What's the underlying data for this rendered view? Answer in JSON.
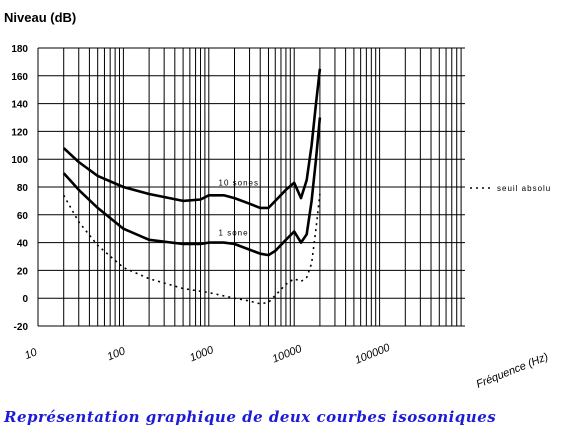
{
  "chart_data": {
    "type": "line",
    "title": "Niveau (dB)",
    "xlabel": "Fréquence (Hz)",
    "ylabel": "Niveau (dB)",
    "x_scale": "log",
    "xlim": [
      10,
      1000000
    ],
    "ylim": [
      -20,
      180
    ],
    "x_ticks": [
      10,
      100,
      1000,
      10000,
      100000
    ],
    "x_tick_labels": [
      "10",
      "100",
      "1000",
      "10000",
      "100000"
    ],
    "y_ticks": [
      -20,
      0,
      20,
      40,
      60,
      80,
      100,
      120,
      140,
      160,
      180
    ],
    "y_tick_labels": [
      "-20",
      "0",
      "20",
      "40",
      "60",
      "80",
      "100",
      "120",
      "140",
      "160",
      "180"
    ],
    "grid": true,
    "legend_placement": "right",
    "series": [
      {
        "name": "10 sones",
        "style": "solid",
        "x": [
          20,
          30,
          50,
          100,
          200,
          500,
          800,
          1000,
          1500,
          2000,
          3000,
          4000,
          5000,
          6000,
          8000,
          10000,
          12000,
          14000,
          16000,
          18000,
          20000
        ],
        "y": [
          108,
          98,
          88,
          80,
          75,
          70,
          71,
          74,
          74,
          72,
          68,
          65,
          65,
          70,
          78,
          83,
          72,
          85,
          110,
          140,
          165
        ]
      },
      {
        "name": "1 sone",
        "style": "solid",
        "x": [
          20,
          30,
          50,
          100,
          200,
          500,
          800,
          1000,
          1500,
          2000,
          3000,
          4000,
          5000,
          6000,
          8000,
          10000,
          12000,
          14000,
          16000,
          18000,
          20000
        ],
        "y": [
          90,
          78,
          65,
          50,
          42,
          39,
          39,
          40,
          40,
          39,
          35,
          32,
          31,
          34,
          42,
          48,
          40,
          46,
          70,
          100,
          130
        ]
      },
      {
        "name": "seuil absolu",
        "style": "dotted",
        "x": [
          20,
          30,
          50,
          100,
          200,
          500,
          1000,
          2000,
          3000,
          4000,
          5000,
          6000,
          8000,
          10000,
          12000,
          14000,
          16000,
          18000,
          20000
        ],
        "y": [
          74,
          55,
          38,
          22,
          14,
          7,
          4,
          0,
          -2,
          -4,
          -3,
          2,
          10,
          14,
          12,
          15,
          25,
          50,
          75
        ]
      }
    ],
    "annotations": [
      {
        "text": "10 sones",
        "x": 1300,
        "y": 81
      },
      {
        "text": "1 sone",
        "x": 1300,
        "y": 45
      }
    ],
    "legend": [
      {
        "text": "seuil absolu",
        "style": "dotted"
      }
    ],
    "caption": "Représentation graphique de deux courbes isosoniques"
  }
}
